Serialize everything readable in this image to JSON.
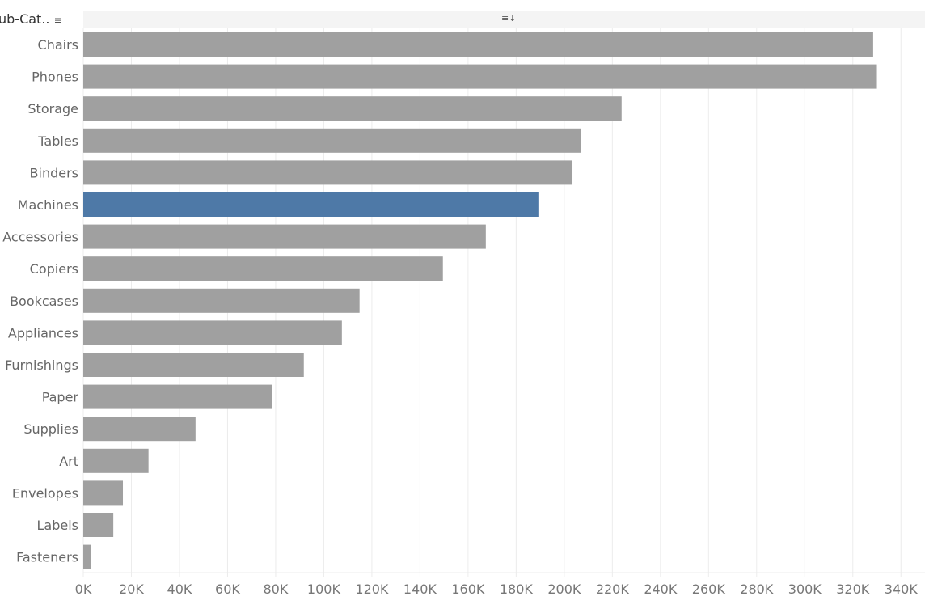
{
  "header": {
    "column_label": "ub-Cat..",
    "sort_icon": "sort-descending-icon",
    "axis_sort_icon": "sort-axis-icon"
  },
  "colors": {
    "bar": "#a0a0a0",
    "highlight": "#4e79a7",
    "grid": "#ececec"
  },
  "chart_data": {
    "type": "bar",
    "orientation": "horizontal",
    "categories": [
      "Chairs",
      "Phones",
      "Storage",
      "Tables",
      "Binders",
      "Machines",
      "Accessories",
      "Copiers",
      "Bookcases",
      "Appliances",
      "Furnishings",
      "Paper",
      "Supplies",
      "Art",
      "Envelopes",
      "Labels",
      "Fasteners"
    ],
    "values": [
      328450,
      330007,
      223844,
      206966,
      203413,
      189239,
      167380,
      149528,
      114880,
      107532,
      91705,
      78479,
      46674,
      27119,
      16476,
      12486,
      3024
    ],
    "highlighted": "Machines",
    "xlim": [
      0,
      350000
    ],
    "xticks": [
      "0K",
      "20K",
      "40K",
      "60K",
      "80K",
      "100K",
      "120K",
      "140K",
      "160K",
      "180K",
      "200K",
      "220K",
      "240K",
      "260K",
      "280K",
      "300K",
      "320K",
      "340K"
    ],
    "grid": true
  }
}
